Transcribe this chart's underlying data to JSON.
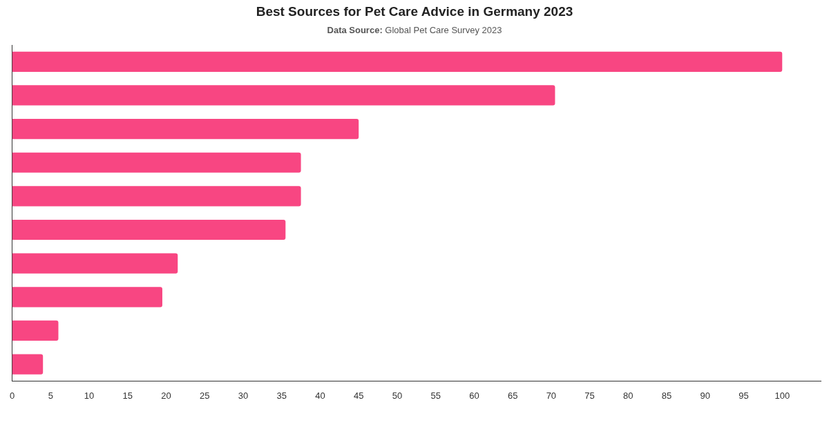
{
  "chart_data": {
    "type": "bar",
    "orientation": "horizontal",
    "title": "Best Sources for Pet Care Advice in Germany 2023",
    "subtitle": "Data Source: Global Pet Care Survey 2023",
    "categories": [
      null,
      null,
      null,
      null,
      null,
      null,
      null,
      null,
      null,
      null
    ],
    "values": [
      100,
      70.5,
      45,
      37.5,
      37.5,
      35.5,
      21.5,
      19.5,
      6,
      4
    ],
    "color": "#f84682",
    "xlim": [
      0,
      105
    ],
    "xticks": [
      0,
      5,
      10,
      15,
      20,
      25,
      30,
      35,
      40,
      45,
      50,
      55,
      60,
      65,
      70,
      75,
      80,
      85,
      90,
      95,
      100
    ],
    "tick_labels": "x"
  }
}
